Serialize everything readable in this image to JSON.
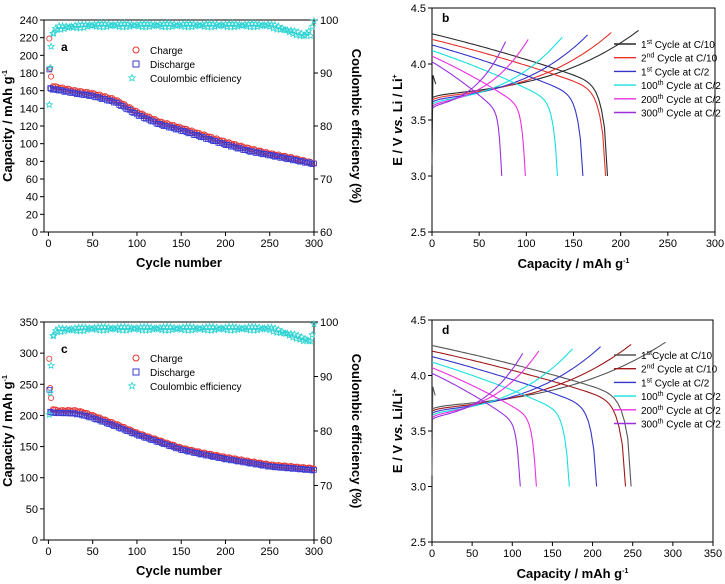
{
  "chart_data": [
    {
      "id": "a",
      "panel_label": "a",
      "type": "scatter",
      "xlabel": "Cycle number",
      "ylabel": "Capacity / mAh g",
      "ylabel_sup": "-1",
      "y2label": "Coulombic efficiency (%)",
      "xlim": [
        -5,
        300
      ],
      "ylim": [
        0,
        240
      ],
      "y2lim": [
        60,
        100
      ],
      "xticks": [
        0,
        50,
        100,
        150,
        200,
        250,
        300
      ],
      "yticks": [
        0,
        20,
        40,
        60,
        80,
        100,
        120,
        140,
        160,
        180,
        200,
        220,
        240
      ],
      "y2ticks": [
        60,
        70,
        80,
        90,
        100
      ],
      "legend_position": "top-center",
      "series": [
        {
          "name": "Charge",
          "marker": "circle",
          "color": "#e8302a",
          "axis": "left",
          "x": [
            1,
            2,
            3,
            5,
            10,
            20,
            30,
            50,
            75,
            100,
            125,
            150,
            175,
            200,
            225,
            250,
            275,
            300
          ],
          "y": [
            219,
            185,
            176,
            165,
            164,
            162,
            160,
            157,
            150,
            136,
            125,
            118,
            110,
            102,
            95,
            89,
            84,
            78
          ]
        },
        {
          "name": "Discharge",
          "marker": "square",
          "color": "#3b3bd1",
          "axis": "left",
          "x": [
            1,
            2,
            3,
            5,
            10,
            20,
            30,
            50,
            75,
            100,
            125,
            150,
            175,
            200,
            225,
            250,
            275,
            300
          ],
          "y": [
            184,
            163,
            162,
            161,
            161,
            159,
            157,
            154,
            147,
            133,
            122,
            115,
            107,
            99,
            92,
            87,
            82,
            77
          ]
        },
        {
          "name": "Coulombic efficiency",
          "marker": "star",
          "color": "#2fd3d3",
          "axis": "right",
          "x": [
            1,
            2,
            3,
            5,
            10,
            50,
            100,
            150,
            200,
            250,
            290,
            300
          ],
          "y": [
            84,
            91,
            95,
            97.5,
            98.5,
            99,
            99,
            99,
            99,
            99,
            97,
            99.5
          ]
        }
      ]
    },
    {
      "id": "b",
      "panel_label": "b",
      "type": "line",
      "xlabel": "Capacity / mAh g",
      "xlabel_sup": "-1",
      "ylabel_parts": [
        "E / V ",
        "vs.",
        " Li / Li",
        "+"
      ],
      "xlim": [
        0,
        300
      ],
      "ylim": [
        2.5,
        4.5
      ],
      "xticks": [
        0,
        50,
        100,
        150,
        200,
        250,
        300
      ],
      "yticks": [
        2.5,
        3.0,
        3.5,
        4.0,
        4.5
      ],
      "legend_position": "right",
      "series": [
        {
          "name_parts": [
            "1",
            "st",
            " Cycle at C/10"
          ],
          "color": "#2a2a2a",
          "ch": 219,
          "dis": 186
        },
        {
          "name_parts": [
            "2",
            "nd",
            " Cycle at C/10"
          ],
          "color": "#e8302a",
          "ch": 190,
          "dis": 184
        },
        {
          "name_parts": [
            "1",
            "st",
            " Cycle at C/2"
          ],
          "color": "#3434c8",
          "ch": 165,
          "dis": 160
        },
        {
          "name_parts": [
            "100",
            "th",
            " Cycle at C/2"
          ],
          "color": "#18e0e0",
          "ch": 138,
          "dis": 133
        },
        {
          "name_parts": [
            "200",
            "th",
            " Cycle at C/2"
          ],
          "color": "#ee2ee0",
          "ch": 102,
          "dis": 99
        },
        {
          "name_parts": [
            "300",
            "th",
            " Cycle at C/2"
          ],
          "color": "#9a30e0",
          "ch": 78,
          "dis": 74
        }
      ]
    },
    {
      "id": "c",
      "panel_label": "c",
      "type": "scatter",
      "xlabel": "Cycle number",
      "ylabel": "Capacity / mAh g",
      "ylabel_sup": "-1",
      "y2label": "Coulombic efficiency (%)",
      "xlim": [
        -5,
        300
      ],
      "ylim": [
        0,
        350
      ],
      "y2lim": [
        60,
        100
      ],
      "xticks": [
        0,
        50,
        100,
        150,
        200,
        250,
        300
      ],
      "yticks": [
        0,
        50,
        100,
        150,
        200,
        250,
        300,
        350
      ],
      "y2ticks": [
        60,
        70,
        80,
        90,
        100
      ],
      "legend_position": "top-center",
      "series": [
        {
          "name": "Charge",
          "marker": "circle",
          "color": "#e8302a",
          "axis": "left",
          "x": [
            1,
            2,
            3,
            5,
            10,
            20,
            30,
            40,
            50,
            75,
            100,
            125,
            150,
            175,
            200,
            225,
            250,
            275,
            300
          ],
          "y": [
            291,
            244,
            228,
            210,
            208,
            208,
            208,
            205,
            200,
            187,
            172,
            160,
            148,
            140,
            133,
            127,
            121,
            118,
            115
          ]
        },
        {
          "name": "Discharge",
          "marker": "square",
          "color": "#3b3bd1",
          "axis": "left",
          "x": [
            1,
            2,
            3,
            5,
            10,
            20,
            30,
            40,
            50,
            75,
            100,
            125,
            150,
            175,
            200,
            225,
            250,
            275,
            300
          ],
          "y": [
            241,
            206,
            205,
            204,
            204,
            204,
            203,
            200,
            196,
            183,
            169,
            157,
            145,
            137,
            130,
            124,
            118,
            115,
            112
          ]
        },
        {
          "name": "Coulombic efficiency",
          "marker": "star",
          "color": "#2fd3d3",
          "axis": "right",
          "x": [
            1,
            2,
            3,
            5,
            10,
            50,
            100,
            150,
            200,
            250,
            296,
            300
          ],
          "y": [
            83,
            87,
            92,
            97.5,
            98.5,
            98.8,
            98.8,
            98.8,
            98.8,
            98.8,
            96.5,
            99.3
          ]
        }
      ]
    },
    {
      "id": "d",
      "panel_label": "d",
      "type": "line",
      "xlabel": "Capacity / mAh g",
      "xlabel_sup": "-1",
      "ylabel_parts": [
        "E / V ",
        "vs.",
        " Li/Li",
        "+"
      ],
      "xlim": [
        0,
        350
      ],
      "ylim": [
        2.5,
        4.5
      ],
      "xticks": [
        0,
        50,
        100,
        150,
        200,
        250,
        300,
        350
      ],
      "yticks": [
        2.5,
        3.0,
        3.5,
        4.0,
        4.5
      ],
      "legend_position": "right",
      "series": [
        {
          "name_parts": [
            "1",
            "st",
            "Cycle at C/10"
          ],
          "color": "#555555",
          "ch": 291,
          "dis": 248
        },
        {
          "name_parts": [
            "2",
            "nd",
            " Cycle at C/10"
          ],
          "color": "#a01818",
          "ch": 248,
          "dis": 241
        },
        {
          "name_parts": [
            "1",
            "st",
            " Cycle at C/2"
          ],
          "color": "#3434c8",
          "ch": 210,
          "dis": 205
        },
        {
          "name_parts": [
            "100",
            "th",
            " Cycle at C/2"
          ],
          "color": "#18e0e0",
          "ch": 175,
          "dis": 171
        },
        {
          "name_parts": [
            "200",
            "th",
            " Cycle at C/2"
          ],
          "color": "#ee2ee0",
          "ch": 133,
          "dis": 130
        },
        {
          "name_parts": [
            "300",
            "th",
            " Cycle at C/2"
          ],
          "color": "#9a30e0",
          "ch": 113,
          "dis": 110
        }
      ]
    }
  ]
}
